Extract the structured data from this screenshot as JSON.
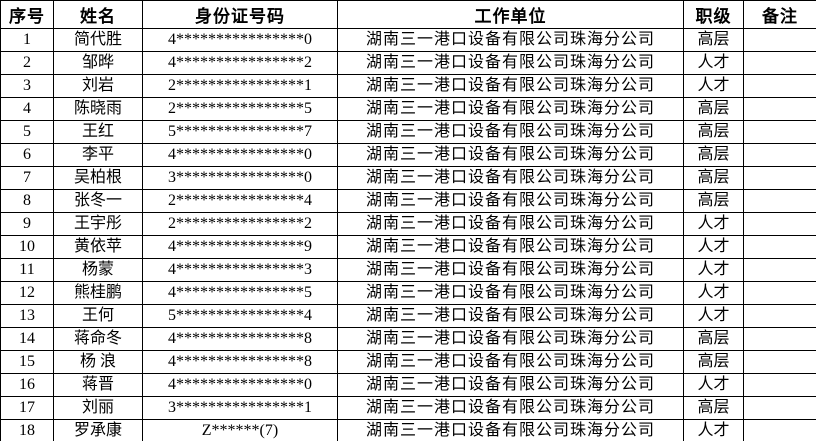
{
  "table": {
    "headers": [
      "序号",
      "姓名",
      "身份证号码",
      "工作单位",
      "职级",
      "备注"
    ],
    "rows": [
      {
        "no": "1",
        "name": "简代胜",
        "id_number": "4****************0",
        "work_unit": "湖南三一港口设备有限公司珠海分公司",
        "rank": "高层",
        "remark": ""
      },
      {
        "no": "2",
        "name": "邹晔",
        "id_number": "4****************2",
        "work_unit": "湖南三一港口设备有限公司珠海分公司",
        "rank": "人才",
        "remark": ""
      },
      {
        "no": "3",
        "name": "刘岩",
        "id_number": "2****************1",
        "work_unit": "湖南三一港口设备有限公司珠海分公司",
        "rank": "人才",
        "remark": ""
      },
      {
        "no": "4",
        "name": "陈晓雨",
        "id_number": "2****************5",
        "work_unit": "湖南三一港口设备有限公司珠海分公司",
        "rank": "高层",
        "remark": ""
      },
      {
        "no": "5",
        "name": "王红",
        "id_number": "5****************7",
        "work_unit": "湖南三一港口设备有限公司珠海分公司",
        "rank": "高层",
        "remark": ""
      },
      {
        "no": "6",
        "name": "李平",
        "id_number": "4****************0",
        "work_unit": "湖南三一港口设备有限公司珠海分公司",
        "rank": "高层",
        "remark": ""
      },
      {
        "no": "7",
        "name": "吴柏根",
        "id_number": "3****************0",
        "work_unit": "湖南三一港口设备有限公司珠海分公司",
        "rank": "高层",
        "remark": ""
      },
      {
        "no": "8",
        "name": "张冬一",
        "id_number": "2****************4",
        "work_unit": "湖南三一港口设备有限公司珠海分公司",
        "rank": "高层",
        "remark": ""
      },
      {
        "no": "9",
        "name": "王宇彤",
        "id_number": "2****************2",
        "work_unit": "湖南三一港口设备有限公司珠海分公司",
        "rank": "人才",
        "remark": ""
      },
      {
        "no": "10",
        "name": "黄依苹",
        "id_number": "4****************9",
        "work_unit": "湖南三一港口设备有限公司珠海分公司",
        "rank": "人才",
        "remark": ""
      },
      {
        "no": "11",
        "name": "杨蒙",
        "id_number": "4****************3",
        "work_unit": "湖南三一港口设备有限公司珠海分公司",
        "rank": "人才",
        "remark": ""
      },
      {
        "no": "12",
        "name": "熊桂鹏",
        "id_number": "4****************5",
        "work_unit": "湖南三一港口设备有限公司珠海分公司",
        "rank": "人才",
        "remark": ""
      },
      {
        "no": "13",
        "name": "王何",
        "id_number": "5****************4",
        "work_unit": "湖南三一港口设备有限公司珠海分公司",
        "rank": "人才",
        "remark": ""
      },
      {
        "no": "14",
        "name": "蒋命冬",
        "id_number": "4****************8",
        "work_unit": "湖南三一港口设备有限公司珠海分公司",
        "rank": "高层",
        "remark": ""
      },
      {
        "no": "15",
        "name": "杨 浪",
        "id_number": "4****************8",
        "work_unit": "湖南三一港口设备有限公司珠海分公司",
        "rank": "高层",
        "remark": ""
      },
      {
        "no": "16",
        "name": "蒋晋",
        "id_number": "4****************0",
        "work_unit": "湖南三一港口设备有限公司珠海分公司",
        "rank": "人才",
        "remark": ""
      },
      {
        "no": "17",
        "name": "刘丽",
        "id_number": "3****************1",
        "work_unit": "湖南三一港口设备有限公司珠海分公司",
        "rank": "高层",
        "remark": ""
      },
      {
        "no": "18",
        "name": "罗承康",
        "id_number": "Z******(7)",
        "work_unit": "湖南三一港口设备有限公司珠海分公司",
        "rank": "人才",
        "remark": ""
      }
    ]
  }
}
